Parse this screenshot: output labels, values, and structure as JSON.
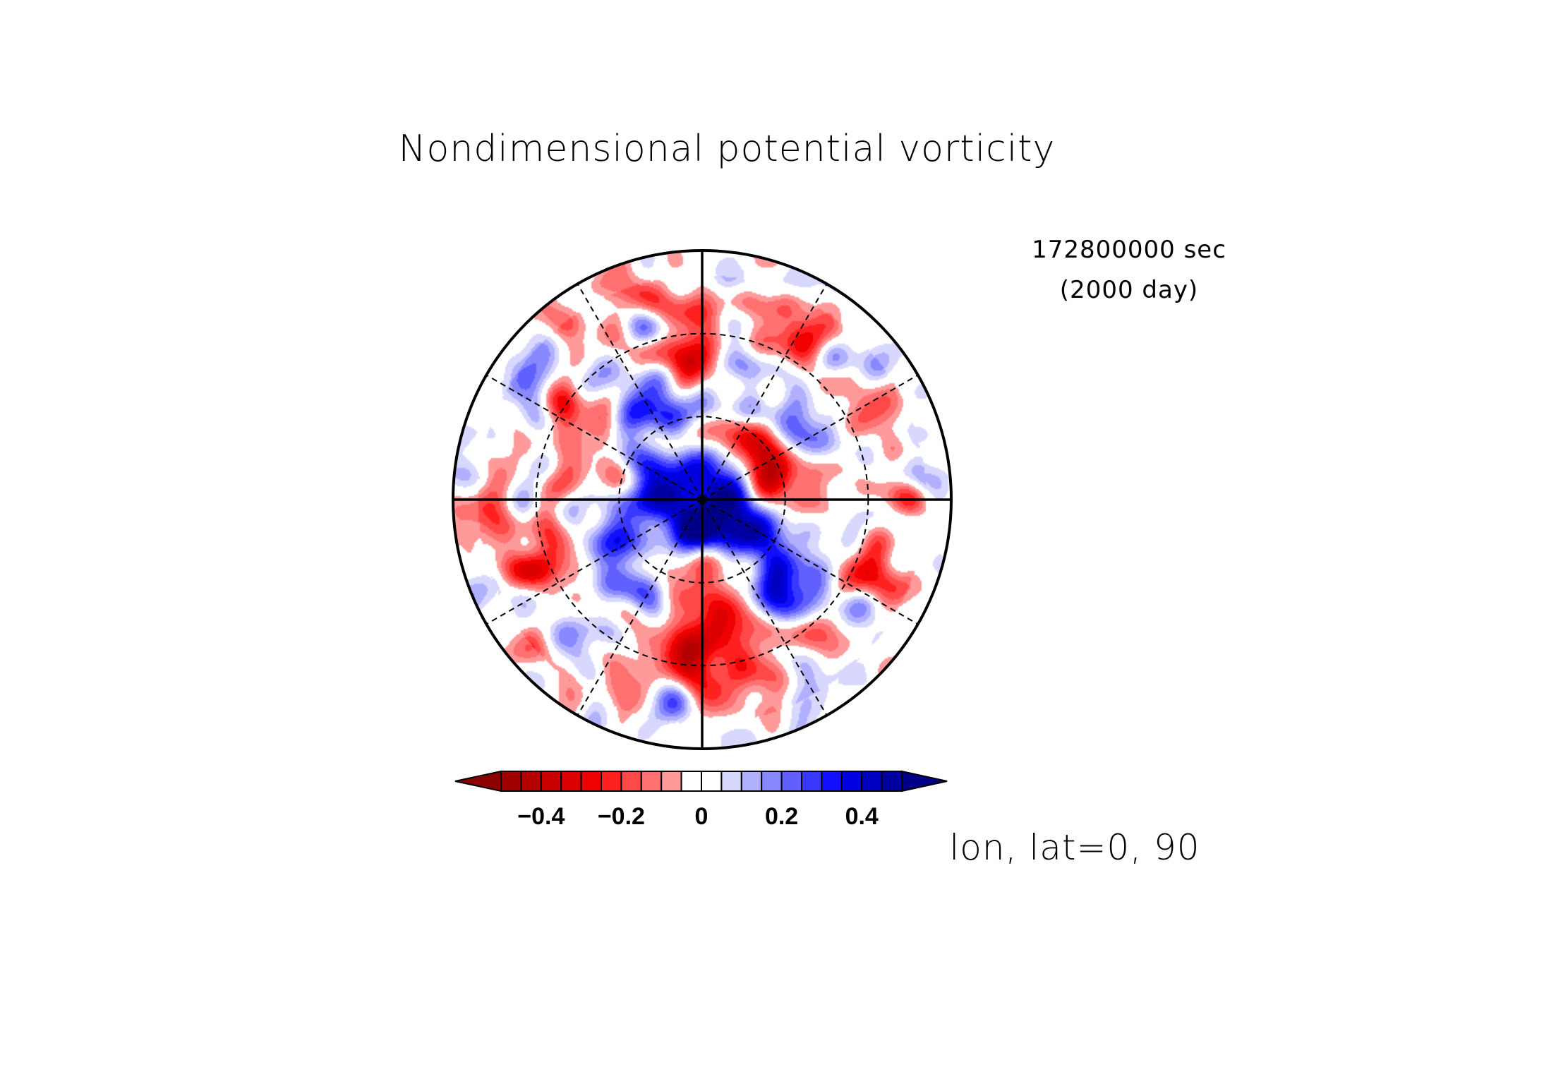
{
  "chart_data": {
    "type": "heatmap",
    "projection": "polar-stereographic",
    "title": "Nondimensional potential vorticity",
    "time": {
      "seconds_label": "172800000 sec",
      "days_label": "(2000 day)"
    },
    "axis_label": "lon, lat=0, 90",
    "field_range": [
      -0.5,
      0.5
    ],
    "colorbar": {
      "levels": [
        -0.5,
        -0.45,
        -0.4,
        -0.35,
        -0.3,
        -0.25,
        -0.2,
        -0.15,
        -0.1,
        -0.05,
        0,
        0.05,
        0.1,
        0.15,
        0.2,
        0.25,
        0.3,
        0.35,
        0.4,
        0.45,
        0.5
      ],
      "colors": [
        "#8b0000",
        "#a00000",
        "#b40000",
        "#c80000",
        "#dc0000",
        "#f00000",
        "#ff2020",
        "#ff4848",
        "#ff7070",
        "#ff9a9a",
        "#ffffff",
        "#ffffff",
        "#d8d8ff",
        "#b0b0ff",
        "#8888ff",
        "#6060ff",
        "#3838ff",
        "#1010ff",
        "#0000e0",
        "#0000c0",
        "#0000a0",
        "#000088"
      ],
      "ticks": [
        {
          "value": -0.4,
          "label": "−0.4"
        },
        {
          "value": -0.2,
          "label": "−0.2"
        },
        {
          "value": 0,
          "label": "0"
        },
        {
          "value": 0.2,
          "label": "0.2"
        },
        {
          "value": 0.4,
          "label": "0.4"
        }
      ]
    },
    "grid": {
      "meridians_deg": [
        0,
        30,
        60,
        90,
        120,
        150,
        180,
        210,
        240,
        270,
        300,
        330
      ],
      "solid_meridians_deg": [
        0,
        90,
        180,
        270
      ],
      "parallels_deg": [
        60,
        30
      ]
    },
    "features": [
      {
        "lon": 200,
        "colat": 0.12,
        "value": 0.45,
        "size": 0.08
      },
      {
        "lon": 20,
        "colat": 0.12,
        "value": 0.45,
        "size": 0.08
      },
      {
        "lon": 110,
        "colat": 0.2,
        "value": 0.4,
        "size": 0.1
      },
      {
        "lon": 300,
        "colat": 0.18,
        "value": 0.4,
        "size": 0.09
      },
      {
        "lon": 140,
        "colat": 0.42,
        "value": 0.42,
        "size": 0.12
      },
      {
        "lon": 250,
        "colat": 0.36,
        "value": 0.38,
        "size": 0.11
      },
      {
        "lon": 340,
        "colat": 0.4,
        "value": 0.32,
        "size": 0.12
      },
      {
        "lon": 60,
        "colat": 0.45,
        "value": 0.3,
        "size": 0.12
      },
      {
        "lon": 20,
        "colat": 0.22,
        "value": -0.42,
        "size": 0.08
      },
      {
        "lon": 50,
        "colat": 0.3,
        "value": -0.3,
        "size": 0.07
      },
      {
        "lon": 70,
        "colat": 0.35,
        "value": -0.38,
        "size": 0.09
      },
      {
        "lon": 170,
        "colat": 0.5,
        "value": -0.4,
        "size": 0.1
      },
      {
        "lon": 185,
        "colat": 0.63,
        "value": -0.35,
        "size": 0.08
      },
      {
        "lon": 205,
        "colat": 0.28,
        "value": -0.3,
        "size": 0.07
      },
      {
        "lon": 150,
        "colat": 0.3,
        "value": -0.36,
        "size": 0.07
      },
      {
        "lon": 110,
        "colat": 0.75,
        "value": -0.32,
        "size": 0.08
      },
      {
        "lon": 355,
        "colat": 0.55,
        "value": -0.4,
        "size": 0.09
      },
      {
        "lon": 300,
        "colat": 0.6,
        "value": -0.36,
        "size": 0.08
      },
      {
        "lon": 250,
        "colat": 0.72,
        "value": -0.3,
        "size": 0.07
      },
      {
        "lon": 30,
        "colat": 0.75,
        "value": -0.32,
        "size": 0.08
      },
      {
        "lon": 330,
        "colat": 0.25,
        "value": -0.25,
        "size": 0.06
      },
      {
        "lon": 90,
        "colat": 0.85,
        "value": -0.2,
        "size": 0.06
      },
      {
        "lon": 230,
        "colat": 0.9,
        "value": -0.22,
        "size": 0.06
      },
      {
        "lon": 10,
        "colat": 0.9,
        "value": 0.18,
        "size": 0.08
      },
      {
        "lon": 190,
        "colat": 0.82,
        "value": 0.2,
        "size": 0.08
      }
    ]
  }
}
